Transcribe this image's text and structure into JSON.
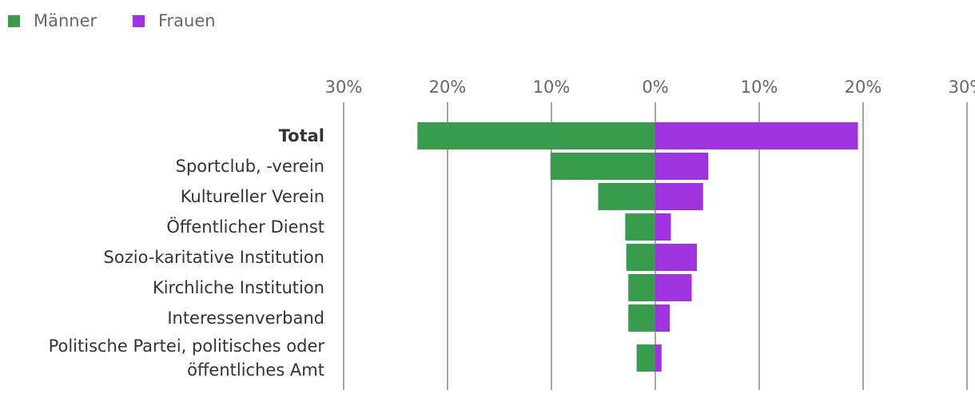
{
  "chart_data": {
    "type": "butterfly",
    "categories": [
      "Total",
      "Sportclub, -verein",
      "Kultureller Verein",
      "Öffentlicher Dienst",
      "Sozio-karitative Institution",
      "Kirchliche Institution",
      "Interessenverband",
      "Politische Partei, politisches oder\nöffentliches Amt"
    ],
    "series": [
      {
        "name": "Männer",
        "color": "#3a9b4f",
        "side": "left",
        "values": [
          22.9,
          10.1,
          5.5,
          2.9,
          2.8,
          2.6,
          2.6,
          1.8
        ]
      },
      {
        "name": "Frauen",
        "color": "#a033e0",
        "side": "right",
        "values": [
          19.5,
          5.1,
          4.6,
          1.5,
          4.0,
          3.5,
          1.4,
          0.6
        ]
      }
    ],
    "xlim": [
      0,
      30
    ],
    "xticks": [
      {
        "value": 0,
        "label": "0%"
      },
      {
        "value": 10,
        "label": "10%"
      },
      {
        "value": 20,
        "label": "20%"
      },
      {
        "value": 30,
        "label": "30%"
      }
    ],
    "grid": true
  }
}
